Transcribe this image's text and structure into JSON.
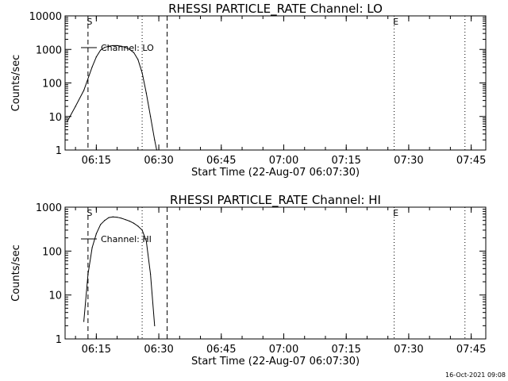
{
  "footer": {
    "datestamp": "16-Oct-2021 09:08"
  },
  "chart_data": [
    {
      "type": "line",
      "title": "RHESSI PARTICLE_RATE Channel: LO",
      "xlabel": "Start Time (22-Aug-07 06:07:30)",
      "ylabel": "Counts/sec",
      "y_scale": "log",
      "xlim": [
        "06:07:30",
        "07:48:30"
      ],
      "ylim": [
        1,
        10000
      ],
      "x_ticks": [
        "06:15",
        "06:30",
        "06:45",
        "07:00",
        "07:15",
        "07:30",
        "07:45"
      ],
      "y_ticks": [
        "1",
        "10",
        "100",
        "1000",
        "10000"
      ],
      "legend": {
        "position": "top-left",
        "entries": [
          "Channel: LO"
        ]
      },
      "series": [
        {
          "name": "Channel: LO",
          "x": [
            "06:08:00",
            "06:10:00",
            "06:12:00",
            "06:14:00",
            "06:15:00",
            "06:16:00",
            "06:17:00",
            "06:18:00",
            "06:19:00",
            "06:20:00",
            "06:21:00",
            "06:22:00",
            "06:23:00",
            "06:24:00",
            "06:25:00",
            "06:26:00",
            "06:27:00",
            "06:28:00",
            "06:29:00",
            "06:29:30"
          ],
          "values": [
            7,
            20,
            60,
            300,
            600,
            950,
            1150,
            1250,
            1300,
            1300,
            1250,
            1150,
            1000,
            800,
            500,
            200,
            50,
            10,
            2,
            1
          ]
        }
      ],
      "markers": [
        {
          "label": "S",
          "x": "06:13:00",
          "style": "dashed"
        },
        {
          "label": "",
          "x": "06:26:00",
          "style": "dotted"
        },
        {
          "label": "",
          "x": "06:32:00",
          "style": "dashed"
        },
        {
          "label": "E",
          "x": "07:26:30",
          "style": "dotted"
        },
        {
          "label": "",
          "x": "07:43:30",
          "style": "dotted"
        }
      ]
    },
    {
      "type": "line",
      "title": "RHESSI PARTICLE_RATE Channel: HI",
      "xlabel": "Start Time (22-Aug-07 06:07:30)",
      "ylabel": "Counts/sec",
      "y_scale": "log",
      "xlim": [
        "06:07:30",
        "07:48:30"
      ],
      "ylim": [
        1,
        1000
      ],
      "x_ticks": [
        "06:15",
        "06:30",
        "06:45",
        "07:00",
        "07:15",
        "07:30",
        "07:45"
      ],
      "y_ticks": [
        "1",
        "10",
        "100",
        "1000"
      ],
      "legend": {
        "position": "top-left",
        "entries": [
          "Channel: HI"
        ]
      },
      "series": [
        {
          "name": "Channel: HI",
          "x": [
            "06:12:00",
            "06:13:00",
            "06:14:00",
            "06:15:00",
            "06:16:00",
            "06:17:00",
            "06:18:00",
            "06:19:00",
            "06:20:00",
            "06:21:00",
            "06:22:00",
            "06:23:00",
            "06:24:00",
            "06:25:00",
            "06:26:00",
            "06:27:00",
            "06:28:00",
            "06:29:00"
          ],
          "values": [
            2.5,
            30,
            120,
            250,
            400,
            500,
            580,
            600,
            590,
            560,
            520,
            480,
            430,
            370,
            300,
            170,
            30,
            2
          ]
        }
      ],
      "markers": [
        {
          "label": "S",
          "x": "06:13:00",
          "style": "dashed"
        },
        {
          "label": "",
          "x": "06:26:00",
          "style": "dotted"
        },
        {
          "label": "",
          "x": "06:32:00",
          "style": "dashed"
        },
        {
          "label": "E",
          "x": "07:26:30",
          "style": "dotted"
        },
        {
          "label": "",
          "x": "07:43:30",
          "style": "dotted"
        }
      ]
    }
  ]
}
